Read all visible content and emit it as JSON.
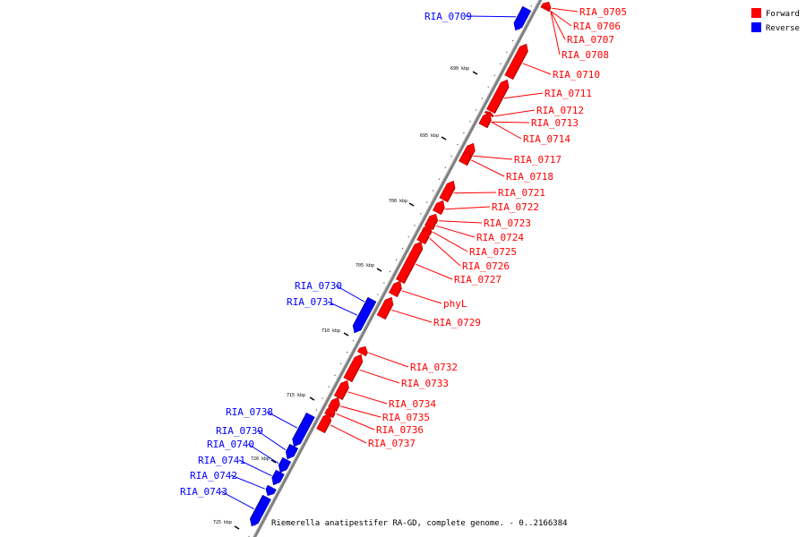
{
  "caption": "Riemerella anatipestifer RA-GD, complete genome. - 0..2166384",
  "legend": [
    {
      "label": "Forward",
      "color": "#ff0000"
    },
    {
      "label": "Reverse",
      "color": "#0000ff"
    }
  ],
  "colors": {
    "forward": "#ff0000",
    "reverse": "#0000ff",
    "backbone": "#808080"
  },
  "ticks": [
    "690 kbp",
    "695 kbp",
    "700 kbp",
    "705 kbp",
    "710 kbp",
    "715 kbp",
    "720 kbp",
    "725 kbp"
  ],
  "genes": [
    {
      "name": "RIA_0705",
      "strand": "forward"
    },
    {
      "name": "RIA_0706",
      "strand": "forward"
    },
    {
      "name": "RIA_0707",
      "strand": "forward"
    },
    {
      "name": "RIA_0708",
      "strand": "forward"
    },
    {
      "name": "RIA_0709",
      "strand": "reverse"
    },
    {
      "name": "RIA_0710",
      "strand": "forward"
    },
    {
      "name": "RIA_0711",
      "strand": "forward"
    },
    {
      "name": "RIA_0712",
      "strand": "forward"
    },
    {
      "name": "RIA_0713",
      "strand": "forward"
    },
    {
      "name": "RIA_0714",
      "strand": "forward"
    },
    {
      "name": "RIA_0717",
      "strand": "forward"
    },
    {
      "name": "RIA_0718",
      "strand": "forward"
    },
    {
      "name": "RIA_0721",
      "strand": "forward"
    },
    {
      "name": "RIA_0722",
      "strand": "forward"
    },
    {
      "name": "RIA_0723",
      "strand": "forward"
    },
    {
      "name": "RIA_0724",
      "strand": "forward"
    },
    {
      "name": "RIA_0725",
      "strand": "forward"
    },
    {
      "name": "RIA_0726",
      "strand": "forward"
    },
    {
      "name": "RIA_0727",
      "strand": "forward"
    },
    {
      "name": "phyL",
      "strand": "forward"
    },
    {
      "name": "RIA_0729",
      "strand": "forward"
    },
    {
      "name": "RIA_0730",
      "strand": "reverse"
    },
    {
      "name": "RIA_0731",
      "strand": "reverse"
    },
    {
      "name": "RIA_0732",
      "strand": "forward"
    },
    {
      "name": "RIA_0733",
      "strand": "forward"
    },
    {
      "name": "RIA_0734",
      "strand": "forward"
    },
    {
      "name": "RIA_0735",
      "strand": "forward"
    },
    {
      "name": "RIA_0736",
      "strand": "forward"
    },
    {
      "name": "RIA_0737",
      "strand": "forward"
    },
    {
      "name": "RIA_0738",
      "strand": "reverse"
    },
    {
      "name": "RIA_0739",
      "strand": "reverse"
    },
    {
      "name": "RIA_0740",
      "strand": "reverse"
    },
    {
      "name": "RIA_0741",
      "strand": "reverse"
    },
    {
      "name": "RIA_0742",
      "strand": "reverse"
    },
    {
      "name": "RIA_0743",
      "strand": "reverse"
    }
  ]
}
